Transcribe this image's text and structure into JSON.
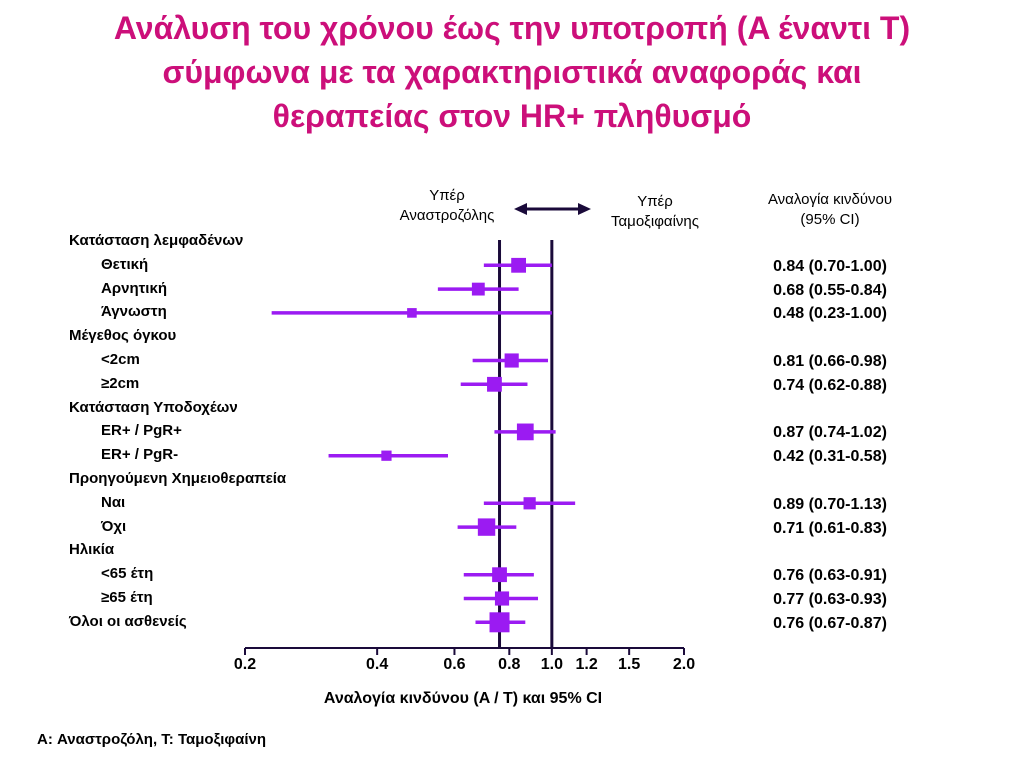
{
  "title": {
    "line1": "Ανάλυση του χρόνου έως την υποτροπή (A έναντι T)",
    "line2": "σύμφωνα με τα χαρακτηριστικά αναφοράς και",
    "line3": "θεραπείας στον HR+ πληθυσμό"
  },
  "favors": {
    "left_line1": "Υπέρ",
    "left_line2": "Αναστροζόλης",
    "right_line1": "Υπέρ",
    "right_line2": "Ταμοξιφαίνης"
  },
  "ci_header": {
    "line1": "Αναλογία κινδύνου",
    "line2": "(95% CI)"
  },
  "footnote": "A: Αναστροζόλη, T: Ταμοξιφαίνη",
  "colors": {
    "title": "#cc0f7a",
    "marker": "#9b1bf2",
    "axis": "#1a0a3a"
  },
  "chart_data": {
    "type": "forest",
    "xlabel": "Αναλογία κινδύνου (A / T) και  95% CI",
    "x_scale": "log",
    "xlim": [
      0.2,
      2.0
    ],
    "x_ticks": [
      {
        "value": 0.2,
        "label": "0.2"
      },
      {
        "value": 0.4,
        "label": "0.4"
      },
      {
        "value": 0.6,
        "label": "0.6"
      },
      {
        "value": 0.8,
        "label": "0.8"
      },
      {
        "value": 1.0,
        "label": "1.0"
      },
      {
        "value": 1.2,
        "label": "1.2"
      },
      {
        "value": 1.5,
        "label": "1.5"
      },
      {
        "value": 2.0,
        "label": "2.0"
      }
    ],
    "reference_lines": [
      0.76,
      1.0
    ],
    "rows": [
      {
        "label": "Κατάσταση λεμφαδένων",
        "group": true
      },
      {
        "label": "Θετική",
        "hr": 0.84,
        "lo": 0.7,
        "hi": 1.0,
        "text": "0.84 (0.70-1.00)",
        "weight": 0.6
      },
      {
        "label": "Αρνητική",
        "hr": 0.68,
        "lo": 0.55,
        "hi": 0.84,
        "text": "0.68 (0.55-0.84)",
        "weight": 0.45
      },
      {
        "label": "Άγνωστη",
        "hr": 0.48,
        "lo": 0.23,
        "hi": 1.0,
        "text": "0.48 (0.23-1.00)",
        "weight": 0.2
      },
      {
        "label": "Μέγεθος όγκου",
        "group": true
      },
      {
        "label": "<2cm",
        "hr": 0.81,
        "lo": 0.66,
        "hi": 0.98,
        "text": "0.81 (0.66-0.98)",
        "weight": 0.55
      },
      {
        "label": "≥2cm",
        "hr": 0.74,
        "lo": 0.62,
        "hi": 0.88,
        "text": "0.74 (0.62-0.88)",
        "weight": 0.6
      },
      {
        "label": "Κατάσταση Υποδοχέων",
        "group": true
      },
      {
        "label": "ER+ / PgR+",
        "hr": 0.87,
        "lo": 0.74,
        "hi": 1.02,
        "text": "0.87 (0.74-1.02)",
        "weight": 0.75
      },
      {
        "label": "ER+ / PgR-",
        "hr": 0.42,
        "lo": 0.31,
        "hi": 0.58,
        "text": "0.42 (0.31-0.58)",
        "weight": 0.25
      },
      {
        "label": "Προηγούμενη Χημειοθεραπεία",
        "group": true
      },
      {
        "label": "Ναι",
        "hr": 0.89,
        "lo": 0.7,
        "hi": 1.13,
        "text": "0.89 (0.70-1.13)",
        "weight": 0.4
      },
      {
        "label": "Όχι",
        "hr": 0.71,
        "lo": 0.61,
        "hi": 0.83,
        "text": "0.71 (0.61-0.83)",
        "weight": 0.8
      },
      {
        "label": "Ηλικία",
        "group": true
      },
      {
        "label": "<65 έτη",
        "hr": 0.76,
        "lo": 0.63,
        "hi": 0.91,
        "text": "0.76 (0.63-0.91)",
        "weight": 0.6
      },
      {
        "label": "≥65 έτη",
        "hr": 0.77,
        "lo": 0.63,
        "hi": 0.93,
        "text": "0.77 (0.63-0.93)",
        "weight": 0.55
      },
      {
        "label": "Όλοι οι ασθενείς",
        "group": true,
        "hr": 0.76,
        "lo": 0.67,
        "hi": 0.87,
        "text": "0.76 (0.67-0.87)",
        "weight": 1.0
      }
    ]
  }
}
